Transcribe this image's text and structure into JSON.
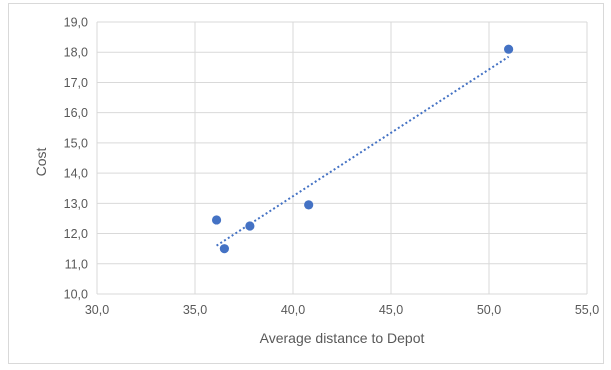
{
  "chart_data": {
    "type": "scatter",
    "xlabel": "Average distance to Depot",
    "ylabel": "Cost",
    "xlim": [
      30,
      55
    ],
    "ylim": [
      10,
      19
    ],
    "x_ticks": [
      "30,0",
      "35,0",
      "40,0",
      "45,0",
      "50,0",
      "55,0"
    ],
    "y_ticks": [
      "10,0",
      "11,0",
      "12,0",
      "13,0",
      "14,0",
      "15,0",
      "16,0",
      "17,0",
      "18,0",
      "19,0"
    ],
    "grid": true,
    "series": [
      {
        "points": [
          {
            "x": 36.1,
            "y": 12.45
          },
          {
            "x": 36.5,
            "y": 11.5
          },
          {
            "x": 37.8,
            "y": 12.25
          },
          {
            "x": 40.8,
            "y": 12.95
          },
          {
            "x": 51.0,
            "y": 18.1
          }
        ],
        "color": "#4472c4",
        "trendline": {
          "type": "linear",
          "from": {
            "x": 36.1,
            "y": 11.6
          },
          "to": {
            "x": 51.0,
            "y": 17.85
          },
          "style": "dotted"
        }
      }
    ]
  }
}
